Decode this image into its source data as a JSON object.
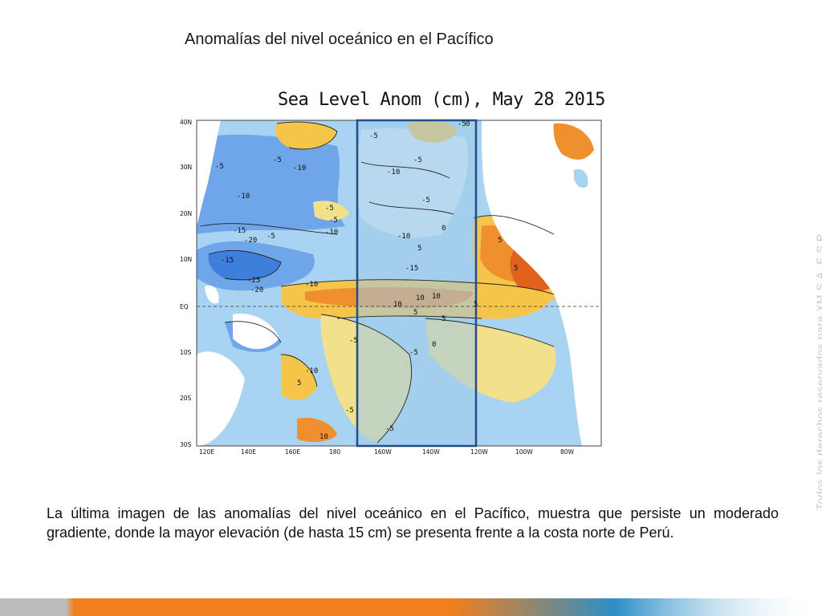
{
  "slide": {
    "title": "Anomalías del nivel oceánico en el Pacífico",
    "body": "La última imagen de las anomalías del nivel oceánico en el Pacífico, muestra que persiste un moderado gradiente, donde la mayor elevación (de hasta 15 cm) se presenta frente a la costa norte de Perú.",
    "watermark": "Todos los derechos reservados para XM S.A. E.S.P."
  },
  "map": {
    "title": "Sea Level Anom (cm), May 28 2015",
    "lat_labels": [
      "40N",
      "30N",
      "20N",
      "10N",
      "EQ",
      "10S",
      "20S",
      "30S"
    ],
    "lon_labels": [
      "120E",
      "140E",
      "160E",
      "180",
      "160W",
      "140W",
      "120W",
      "100W",
      "80W"
    ],
    "contour_labels": [
      "-5",
      "-5",
      "-10",
      "-15",
      "-20",
      "-5",
      "-10",
      "-15",
      "-25",
      "-20",
      "-10",
      "-5",
      "-5",
      "-10",
      "-5",
      "-10",
      "-5",
      "-15",
      "-10",
      "-5",
      "0",
      "5",
      "5",
      "10",
      "10",
      "10",
      "5",
      "5",
      "-5",
      "0",
      "-5",
      "-10",
      "-5",
      "-5",
      "10",
      "5",
      "5",
      "-5",
      "0",
      "5"
    ],
    "colors": {
      "deep_negative": "#3f7fdc",
      "negative": "#6fa6ea",
      "slight_negative": "#a8d4f2",
      "neutral": "#d8ecf8",
      "slight_positive": "#f2e08a",
      "positive": "#f5c54a",
      "strong_positive": "#f08f2e",
      "very_strong_positive": "#e0621c",
      "land": "#ffffff",
      "box_fill": "#9fc9e8",
      "box_stroke": "#234d8a"
    }
  },
  "footer": {
    "colors": [
      "#bcbcbc",
      "#f07f1e",
      "#2c8fc8"
    ]
  }
}
